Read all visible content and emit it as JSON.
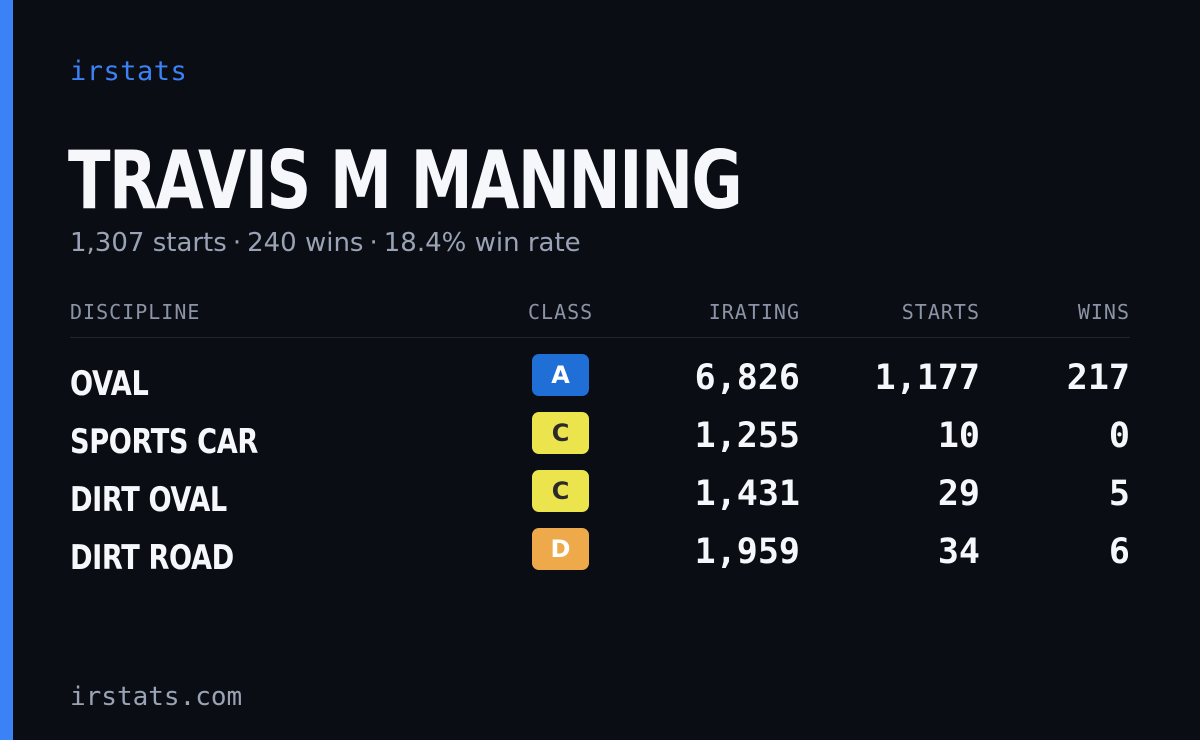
{
  "brand": "irstats",
  "player": {
    "name": "TRAVIS M MANNING",
    "starts": "1,307 starts",
    "wins": "240 wins",
    "win_rate": "18.4% win rate",
    "separator": "·"
  },
  "table": {
    "headers": {
      "discipline": "DISCIPLINE",
      "class": "CLASS",
      "irating": "IRATING",
      "starts": "STARTS",
      "wins": "WINS"
    },
    "rows": [
      {
        "discipline": "OVAL",
        "class": "A",
        "class_color": "#1f6fd6",
        "class_text_color": "#ffffff",
        "irating": "6,826",
        "starts": "1,177",
        "wins": "217"
      },
      {
        "discipline": "SPORTS CAR",
        "class": "C",
        "class_color": "#ece44d",
        "class_text_color": "#2a2a2a",
        "irating": "1,255",
        "starts": "10",
        "wins": "0"
      },
      {
        "discipline": "DIRT OVAL",
        "class": "C",
        "class_color": "#ece44d",
        "class_text_color": "#2a2a2a",
        "irating": "1,431",
        "starts": "29",
        "wins": "5"
      },
      {
        "discipline": "DIRT ROAD",
        "class": "D",
        "class_color": "#eeaa4a",
        "class_text_color": "#ffffff",
        "irating": "1,959",
        "starts": "34",
        "wins": "6"
      }
    ]
  },
  "footer": "irstats.com",
  "colors": {
    "accent": "#3b82f6",
    "background": "#0a0d14"
  }
}
